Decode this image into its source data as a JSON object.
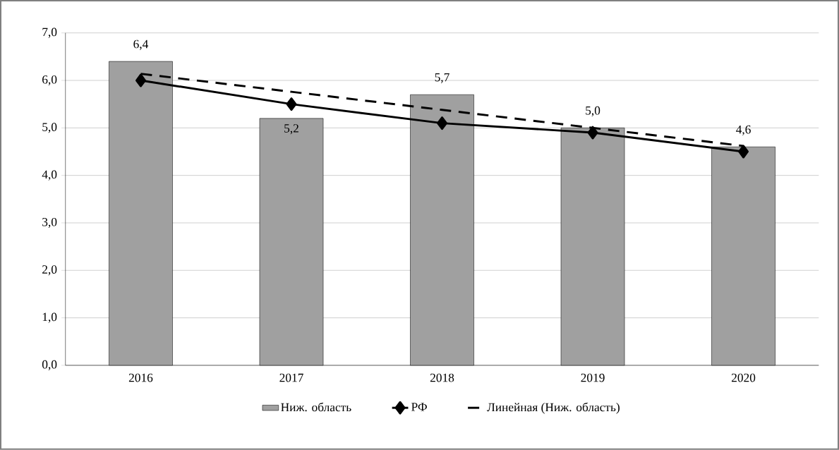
{
  "chart_data": {
    "type": "bar",
    "categories": [
      "2016",
      "2017",
      "2018",
      "2019",
      "2020"
    ],
    "series": [
      {
        "type": "bar",
        "name": "Ниж. область",
        "color": "#a0a0a0",
        "values": [
          6.4,
          5.2,
          5.7,
          5.0,
          4.6
        ],
        "value_labels": [
          "6,4",
          "5,2",
          "5,7",
          "5,0",
          "4,6"
        ]
      },
      {
        "type": "line",
        "name": "РФ",
        "color": "#000000",
        "marker": "diamond",
        "line_style": "solid",
        "values": [
          6.0,
          5.5,
          5.1,
          4.9,
          4.5
        ]
      },
      {
        "type": "line",
        "name": "Линейная (Ниж. область)",
        "color": "#000000",
        "marker": "none",
        "line_style": "dashed",
        "values": [
          6.14,
          5.76,
          5.38,
          5.0,
          4.62
        ]
      }
    ],
    "ylim": [
      0,
      7
    ],
    "yticks": [
      {
        "value": 0,
        "label": "0,0"
      },
      {
        "value": 1,
        "label": "1,0"
      },
      {
        "value": 2,
        "label": "2,0"
      },
      {
        "value": 3,
        "label": "3,0"
      },
      {
        "value": 4,
        "label": "4,0"
      },
      {
        "value": 5,
        "label": "5,0"
      },
      {
        "value": 6,
        "label": "6,0"
      },
      {
        "value": 7,
        "label": "7,0"
      }
    ],
    "grid": "y",
    "legend": "bottom"
  }
}
